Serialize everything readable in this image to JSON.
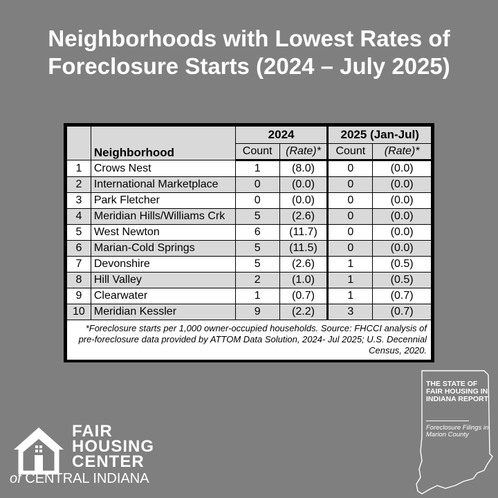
{
  "title": {
    "line1": "Neighborhoods with Lowest Rates of",
    "line2": "Foreclosure Starts (2024 – July 2025)"
  },
  "table": {
    "year1": "2024",
    "year2": "2025 (Jan-Jul)",
    "neighborhood_header": "Neighborhood",
    "count_header": "Count",
    "rate_header": "(Rate)*",
    "rows": [
      {
        "rank": "1",
        "name": "Crows Nest",
        "c24": "1",
        "r24": "(8.0)",
        "c25": "0",
        "r25": "(0.0)"
      },
      {
        "rank": "2",
        "name": "International Marketplace",
        "c24": "0",
        "r24": "(0.0)",
        "c25": "0",
        "r25": "(0.0)"
      },
      {
        "rank": "3",
        "name": "Park Fletcher",
        "c24": "0",
        "r24": "(0.0)",
        "c25": "0",
        "r25": "(0.0)"
      },
      {
        "rank": "4",
        "name": "Meridian Hills/Williams Crk",
        "c24": "5",
        "r24": "(2.6)",
        "c25": "0",
        "r25": "(0.0)"
      },
      {
        "rank": "5",
        "name": "West Newton",
        "c24": "6",
        "r24": "(11.7)",
        "c25": "0",
        "r25": "(0.0)"
      },
      {
        "rank": "6",
        "name": "Marian-Cold Springs",
        "c24": "5",
        "r24": "(11.5)",
        "c25": "0",
        "r25": "(0.0)"
      },
      {
        "rank": "7",
        "name": "Devonshire",
        "c24": "5",
        "r24": "(2.6)",
        "c25": "1",
        "r25": "(0.5)"
      },
      {
        "rank": "8",
        "name": "Hill Valley",
        "c24": "2",
        "r24": "(1.0)",
        "c25": "1",
        "r25": "(0.5)"
      },
      {
        "rank": "9",
        "name": "Clearwater",
        "c24": "1",
        "r24": "(0.7)",
        "c25": "1",
        "r25": "(0.7)"
      },
      {
        "rank": "10",
        "name": "Meridian Kessler",
        "c24": "9",
        "r24": "(2.2)",
        "c25": "3",
        "r25": "(0.7)"
      }
    ],
    "footnote": "*Foreclosure starts per 1,000 owner-occupied households. Source: FHCCI analysis of pre-foreclosure data provided by ATTOM Data Solution, 2024- Jul 2025; U.S. Decennial Census, 2020."
  },
  "logo": {
    "line1": "FAIR",
    "line2": "HOUSING",
    "line3": "CENTER",
    "line4_of": "of",
    "line4_rest": "CENTRAL INDIANA"
  },
  "report": {
    "title": "THE STATE OF FAIR HOUSING IN INDIANA REPORT",
    "subtitle": "Foreclosure Filings in Marion County"
  },
  "colors": {
    "background": "#7f7f7f",
    "header_fill": "#d9d9d9",
    "text_light": "#ffffff"
  }
}
